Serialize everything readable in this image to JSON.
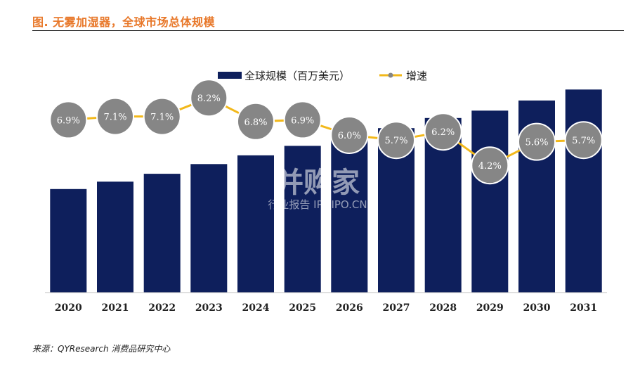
{
  "header": {
    "figure_title": "图.  无雾加湿器，全球市场总体规模"
  },
  "footer": {
    "source": "来源：QYResearch 消费品研究中心"
  },
  "watermark": {
    "brand": "并购家",
    "tagline": "行业报告 IPOIPO.CN"
  },
  "chart_data": {
    "type": "bar",
    "title": "",
    "xlabel": "",
    "ylabel": "",
    "categories": [
      "2020",
      "2021",
      "2022",
      "2023",
      "2024",
      "2025",
      "2026",
      "2027",
      "2028",
      "2029",
      "2030",
      "2031"
    ],
    "series": [
      {
        "name": "全球规模（百万美元）",
        "type": "bar",
        "values": [
          100,
          107.1,
          114.7,
          124.1,
          132.5,
          141.7,
          150.2,
          158.8,
          168.6,
          175.7,
          185.5,
          196.1
        ]
      },
      {
        "name": "增速",
        "type": "line",
        "values": [
          6.9,
          7.1,
          7.1,
          8.2,
          6.8,
          6.9,
          6.0,
          5.7,
          6.2,
          4.2,
          5.6,
          5.7
        ],
        "labels": [
          "6.9%",
          "7.1%",
          "7.1%",
          "8.2%",
          "6.8%",
          "6.9%",
          "6.0%",
          "5.7%",
          "6.2%",
          "4.2%",
          "5.6%",
          "5.7%"
        ]
      }
    ],
    "bar_axis_range": [
      0,
      216
    ],
    "line_axis_range": [
      2.0,
      11.5
    ],
    "axis_ticks_visible": false,
    "grid": false,
    "legend_position": "top-center",
    "colors": {
      "bar": "#0e1f5c",
      "line": "#f2b81a",
      "marker_fill": "#868686",
      "marker_stroke": "#ffffff",
      "marker_label": "#ffffff",
      "axis_line": "#bfbfbf",
      "tick_label": "#222222"
    }
  }
}
